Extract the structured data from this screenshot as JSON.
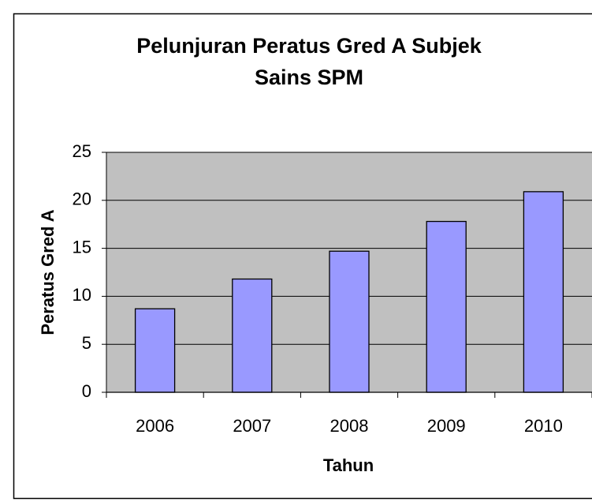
{
  "chart_data": {
    "type": "bar",
    "title": [
      "Pelunjuran Peratus Gred A Subjek",
      "Sains SPM"
    ],
    "x_label": "Tahun",
    "y_label": "Peratus Gred A",
    "categories": [
      "2006",
      "2007",
      "2008",
      "2009",
      "2010"
    ],
    "values": [
      8.7,
      11.8,
      14.7,
      17.8,
      20.9
    ],
    "color": "#9999ff",
    "ylim": [
      0,
      25
    ],
    "yticks": [
      0,
      5,
      10,
      15,
      20,
      25
    ],
    "grid": true
  }
}
